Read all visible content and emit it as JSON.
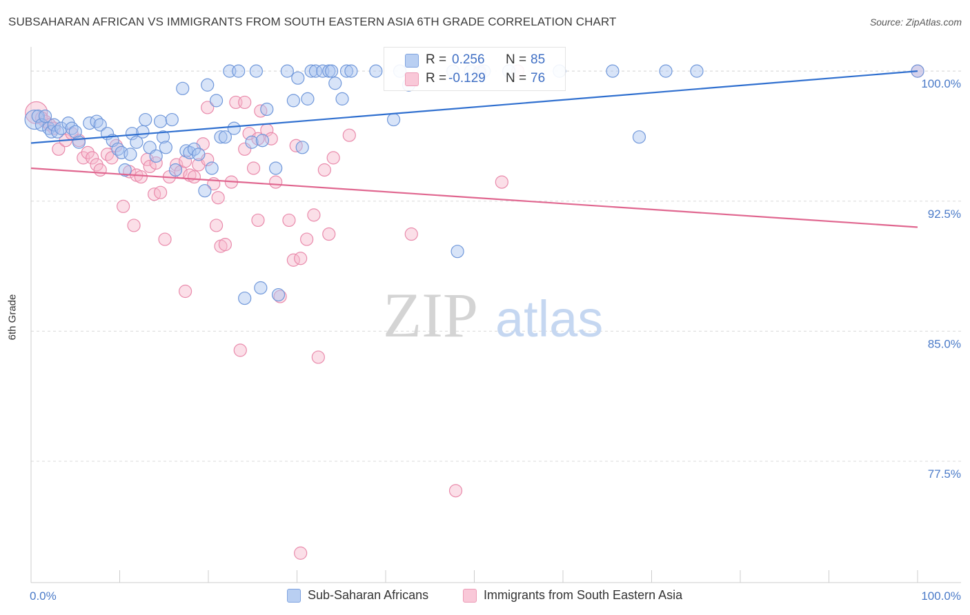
{
  "title": "SUBSAHARAN AFRICAN VS IMMIGRANTS FROM SOUTH EASTERN ASIA 6TH GRADE CORRELATION CHART",
  "source": "Source: ZipAtlas.com",
  "watermark": {
    "zip": "ZIP",
    "atlas": "atlas"
  },
  "colors": {
    "blue_fill": "#a8c4f0",
    "blue_stroke": "#6f97da",
    "blue_line": "#2f6fcf",
    "pink_fill": "#f7b9cd",
    "pink_stroke": "#e98aab",
    "pink_line": "#e0668f",
    "tick_text": "#4a7ac8",
    "grid": "#d9d9d9"
  },
  "legend_top": {
    "rows": [
      {
        "r_label": "R =",
        "r_value": "0.256",
        "n_label": "N =",
        "n_value": "85"
      },
      {
        "r_label": "R =",
        "r_value": "-0.129",
        "n_label": "N =",
        "n_value": "76"
      }
    ]
  },
  "legend_bottom": {
    "items": [
      {
        "label": "Sub-Saharan Africans"
      },
      {
        "label": "Immigrants from South Eastern Asia"
      }
    ]
  },
  "chart_data": {
    "type": "scatter",
    "title": "SUBSAHARAN AFRICAN VS IMMIGRANTS FROM SOUTH EASTERN ASIA 6TH GRADE CORRELATION CHART",
    "xlabel": "",
    "ylabel": "6th Grade",
    "xlim": [
      0,
      100
    ],
    "ylim": [
      70.5,
      101.0
    ],
    "x_tick_labels": [
      "0.0%",
      "100.0%"
    ],
    "y_ticks": [
      77.5,
      85.0,
      92.5,
      100.0
    ],
    "y_tick_labels": [
      "77.5%",
      "85.0%",
      "92.5%",
      "100.0%"
    ],
    "grid": "horizontal dashed",
    "legend": "top-center and bottom",
    "series": [
      {
        "name": "Sub-Saharan Africans",
        "r": 0.256,
        "n": 85,
        "trend": {
          "x": [
            0,
            100
          ],
          "y": [
            95.85,
            100.0
          ]
        },
        "points": [
          [
            0.4,
            97.2
          ],
          [
            0.8,
            97.4
          ],
          [
            1.2,
            96.9
          ],
          [
            1.6,
            97.4
          ],
          [
            2.0,
            96.7
          ],
          [
            2.3,
            96.5
          ],
          [
            2.6,
            96.9
          ],
          [
            3.0,
            96.5
          ],
          [
            3.4,
            96.7
          ],
          [
            4.2,
            97.0
          ],
          [
            4.6,
            96.7
          ],
          [
            5.0,
            96.5
          ],
          [
            5.4,
            95.9
          ],
          [
            6.6,
            97.0
          ],
          [
            7.4,
            97.1
          ],
          [
            7.8,
            96.9
          ],
          [
            8.6,
            96.4
          ],
          [
            9.2,
            96.0
          ],
          [
            9.8,
            95.5
          ],
          [
            10.2,
            95.3
          ],
          [
            10.6,
            94.3
          ],
          [
            11.2,
            95.2
          ],
          [
            11.4,
            96.4
          ],
          [
            11.9,
            95.9
          ],
          [
            12.6,
            96.5
          ],
          [
            12.9,
            97.2
          ],
          [
            13.4,
            95.6
          ],
          [
            14.1,
            95.1
          ],
          [
            14.6,
            97.1
          ],
          [
            14.9,
            96.2
          ],
          [
            15.2,
            95.6
          ],
          [
            15.9,
            97.2
          ],
          [
            16.3,
            94.3
          ],
          [
            17.1,
            99.0
          ],
          [
            17.5,
            95.4
          ],
          [
            17.9,
            95.3
          ],
          [
            18.4,
            95.5
          ],
          [
            18.9,
            95.2
          ],
          [
            19.6,
            93.1
          ],
          [
            19.9,
            99.2
          ],
          [
            20.4,
            94.4
          ],
          [
            20.9,
            98.3
          ],
          [
            21.4,
            96.2
          ],
          [
            21.9,
            96.2
          ],
          [
            22.4,
            100.0
          ],
          [
            22.9,
            96.7
          ],
          [
            23.4,
            100.0
          ],
          [
            24.1,
            86.9
          ],
          [
            24.9,
            95.9
          ],
          [
            25.4,
            100.0
          ],
          [
            25.9,
            87.5
          ],
          [
            26.1,
            96.0
          ],
          [
            26.6,
            97.8
          ],
          [
            27.6,
            94.4
          ],
          [
            27.9,
            87.1
          ],
          [
            28.9,
            100.0
          ],
          [
            29.6,
            98.3
          ],
          [
            30.1,
            99.6
          ],
          [
            30.6,
            95.6
          ],
          [
            31.2,
            98.4
          ],
          [
            31.6,
            100.0
          ],
          [
            32.1,
            100.0
          ],
          [
            32.9,
            100.0
          ],
          [
            33.6,
            100.0
          ],
          [
            33.9,
            100.0
          ],
          [
            34.3,
            99.3
          ],
          [
            35.1,
            98.4
          ],
          [
            35.6,
            100.0
          ],
          [
            36.1,
            100.0
          ],
          [
            38.9,
            100.0
          ],
          [
            40.9,
            97.2
          ],
          [
            41.6,
            100.0
          ],
          [
            42.6,
            99.2
          ],
          [
            47.6,
            100.0
          ],
          [
            48.1,
            89.6
          ],
          [
            49.6,
            100.0
          ],
          [
            50.6,
            99.9
          ],
          [
            51.1,
            100.0
          ],
          [
            53.9,
            100.0
          ],
          [
            59.6,
            100.0
          ],
          [
            65.6,
            100.0
          ],
          [
            68.6,
            96.2
          ],
          [
            71.6,
            100.0
          ],
          [
            75.1,
            100.0
          ],
          [
            100.0,
            100.0
          ]
        ]
      },
      {
        "name": "Immigrants from South Eastern Asia",
        "r": -0.129,
        "n": 76,
        "trend": {
          "x": [
            0,
            100
          ],
          "y": [
            94.4,
            91.0
          ]
        },
        "points": [
          [
            0.6,
            97.6
          ],
          [
            1.2,
            97.3
          ],
          [
            1.6,
            97.1
          ],
          [
            2.1,
            96.9
          ],
          [
            2.6,
            96.7
          ],
          [
            3.1,
            95.5
          ],
          [
            3.9,
            96.0
          ],
          [
            4.6,
            96.4
          ],
          [
            5.4,
            96.0
          ],
          [
            5.9,
            95.0
          ],
          [
            6.4,
            95.3
          ],
          [
            6.9,
            95.0
          ],
          [
            7.4,
            94.6
          ],
          [
            7.8,
            94.3
          ],
          [
            8.6,
            95.2
          ],
          [
            9.1,
            95.0
          ],
          [
            9.6,
            95.7
          ],
          [
            10.4,
            92.2
          ],
          [
            11.1,
            94.2
          ],
          [
            11.6,
            91.1
          ],
          [
            11.9,
            94.0
          ],
          [
            12.4,
            93.9
          ],
          [
            13.1,
            94.9
          ],
          [
            13.4,
            94.5
          ],
          [
            13.9,
            92.9
          ],
          [
            14.1,
            94.7
          ],
          [
            14.6,
            93.0
          ],
          [
            15.1,
            90.3
          ],
          [
            15.6,
            93.9
          ],
          [
            16.4,
            94.6
          ],
          [
            16.9,
            94.2
          ],
          [
            17.4,
            94.8
          ],
          [
            17.9,
            94.0
          ],
          [
            18.4,
            93.9
          ],
          [
            18.9,
            94.6
          ],
          [
            19.4,
            95.8
          ],
          [
            19.9,
            94.9
          ],
          [
            20.6,
            93.5
          ],
          [
            21.1,
            92.7
          ],
          [
            21.4,
            89.9
          ],
          [
            21.9,
            90.0
          ],
          [
            22.6,
            93.6
          ],
          [
            23.1,
            98.2
          ],
          [
            23.6,
            83.9
          ],
          [
            24.1,
            95.5
          ],
          [
            24.6,
            96.4
          ],
          [
            25.1,
            94.4
          ],
          [
            25.6,
            91.4
          ],
          [
            25.9,
            97.7
          ],
          [
            26.6,
            96.6
          ],
          [
            27.1,
            96.1
          ],
          [
            27.6,
            93.6
          ],
          [
            28.1,
            87.0
          ],
          [
            29.1,
            91.4
          ],
          [
            29.6,
            89.1
          ],
          [
            29.9,
            95.7
          ],
          [
            30.4,
            89.2
          ],
          [
            31.1,
            90.3
          ],
          [
            31.9,
            91.7
          ],
          [
            32.4,
            83.5
          ],
          [
            33.1,
            94.3
          ],
          [
            33.6,
            90.6
          ],
          [
            34.1,
            95.0
          ],
          [
            35.9,
            96.3
          ],
          [
            42.9,
            90.6
          ],
          [
            47.9,
            75.8
          ],
          [
            50.6,
            100.0
          ],
          [
            53.1,
            93.6
          ],
          [
            54.9,
            100.0
          ],
          [
            30.4,
            72.2
          ],
          [
            24.1,
            98.2
          ],
          [
            19.9,
            97.9
          ],
          [
            17.4,
            87.3
          ],
          [
            20.9,
            91.1
          ],
          [
            25.6,
            96.1
          ],
          [
            100.0,
            100.0
          ]
        ]
      }
    ]
  }
}
